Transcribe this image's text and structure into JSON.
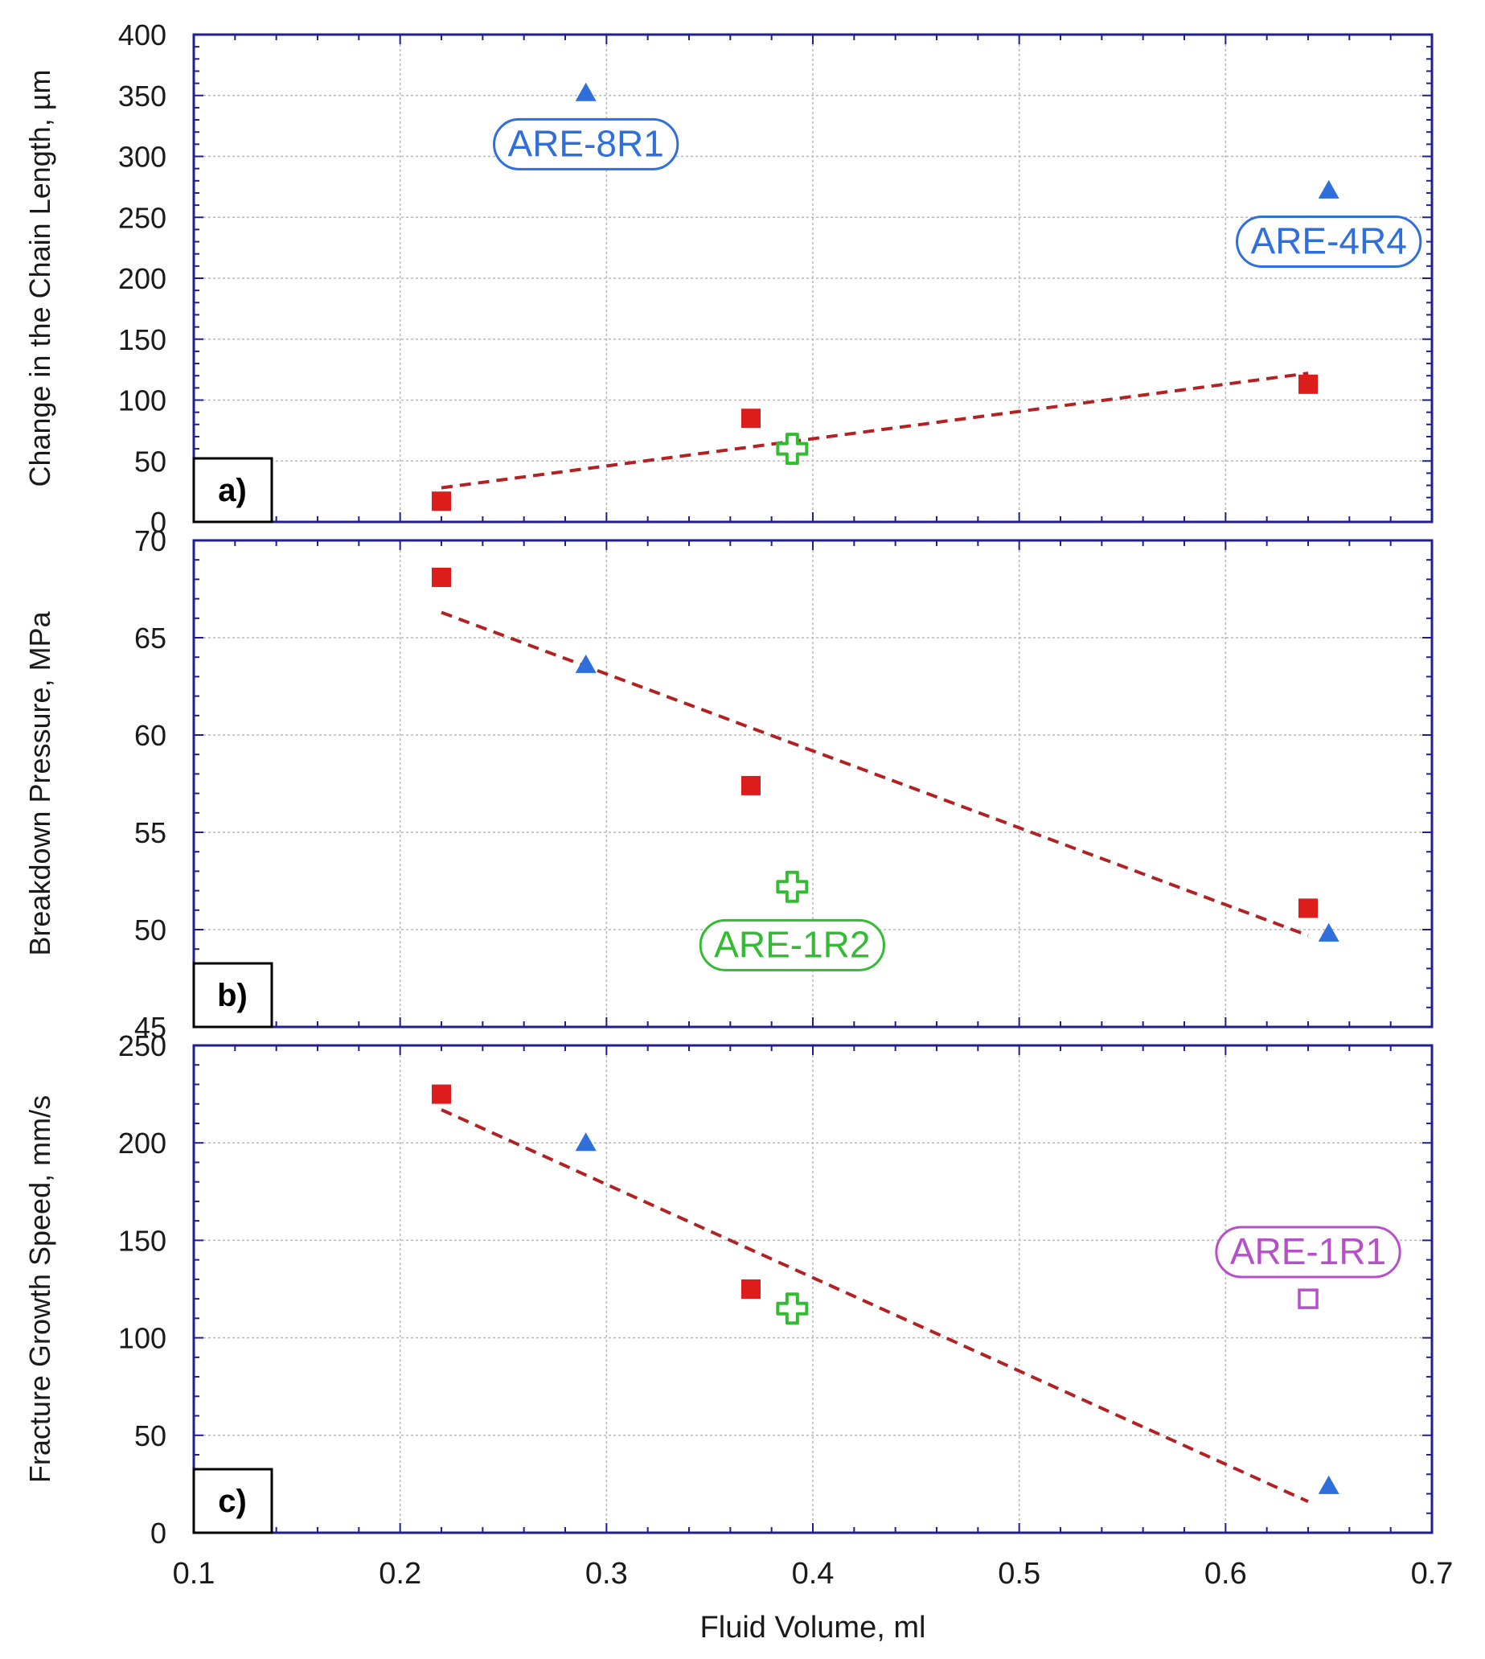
{
  "chart_data": {
    "type": "scatter",
    "xlabel": "Fluid Volume, ml",
    "xlim": [
      0.1,
      0.7
    ],
    "xticks": [
      "0.1",
      "0.2",
      "0.3",
      "0.4",
      "0.5",
      "0.6",
      "0.7"
    ],
    "xtick_values": [
      0.1,
      0.2,
      0.3,
      0.4,
      0.5,
      0.6,
      0.7
    ],
    "grid": true,
    "legend": "none",
    "colors": {
      "frame": "#1f1f8f",
      "grid": "#b8b8b8",
      "trend": "#b22222",
      "square": "#dd1c1c",
      "triangle": "#2f6fdc",
      "cross": "#33bb33",
      "open_square": "#b64fc8",
      "label_blue": "#2f6fdc",
      "label_green": "#33bb33",
      "label_purple": "#b64fc8"
    },
    "panels": [
      {
        "id": "a",
        "panel_label": "a)",
        "ylabel": "Change in the Chain Length, µm",
        "ylim": [
          0,
          400
        ],
        "yticks": [
          "0",
          "50",
          "100",
          "150",
          "200",
          "250",
          "300",
          "350",
          "400"
        ],
        "ytick_values": [
          0,
          50,
          100,
          150,
          200,
          250,
          300,
          350,
          400
        ],
        "series": [
          {
            "name": "red squares",
            "marker": "square-filled",
            "color": "#dd1c1c",
            "points": [
              [
                0.22,
                17
              ],
              [
                0.37,
                85
              ],
              [
                0.64,
                113
              ]
            ]
          },
          {
            "name": "blue triangles",
            "marker": "triangle",
            "color": "#2f6fdc",
            "points": [
              [
                0.29,
                352
              ],
              [
                0.65,
                272
              ]
            ]
          },
          {
            "name": "green cross",
            "marker": "cross-open",
            "color": "#33bb33",
            "points": [
              [
                0.39,
                60
              ]
            ]
          }
        ],
        "trendline": {
          "x": [
            0.22,
            0.64
          ],
          "y": [
            28,
            122
          ]
        },
        "annotations": [
          {
            "text": "ARE-8R1",
            "x": 0.29,
            "y": 310,
            "color": "#2f6fdc"
          },
          {
            "text": "ARE-4R4",
            "x": 0.65,
            "y": 230,
            "color": "#2f6fdc"
          }
        ]
      },
      {
        "id": "b",
        "panel_label": "b)",
        "ylabel": "Breakdown Pressure, MPa",
        "ylim": [
          45,
          70
        ],
        "yticks": [
          "45",
          "50",
          "55",
          "60",
          "65",
          "70"
        ],
        "ytick_values": [
          45,
          50,
          55,
          60,
          65,
          70
        ],
        "series": [
          {
            "name": "red squares",
            "marker": "square-filled",
            "color": "#dd1c1c",
            "points": [
              [
                0.22,
                68.1
              ],
              [
                0.37,
                57.4
              ],
              [
                0.64,
                51.1
              ]
            ]
          },
          {
            "name": "blue triangles",
            "marker": "triangle",
            "color": "#2f6fdc",
            "points": [
              [
                0.29,
                63.6
              ],
              [
                0.65,
                49.8
              ]
            ]
          },
          {
            "name": "green cross",
            "marker": "cross-open",
            "color": "#33bb33",
            "points": [
              [
                0.39,
                52.2
              ]
            ]
          }
        ],
        "trendline": {
          "x": [
            0.22,
            0.64
          ],
          "y": [
            66.3,
            49.7
          ]
        },
        "annotations": [
          {
            "text": "ARE-1R2",
            "x": 0.39,
            "y": 49.2,
            "color": "#33bb33"
          }
        ]
      },
      {
        "id": "c",
        "panel_label": "c)",
        "ylabel": "Fracture Growth Speed, mm/s",
        "ylim": [
          0,
          250
        ],
        "yticks": [
          "0",
          "50",
          "100",
          "150",
          "200",
          "250"
        ],
        "ytick_values": [
          0,
          50,
          100,
          150,
          200,
          250
        ],
        "series": [
          {
            "name": "red squares",
            "marker": "square-filled",
            "color": "#dd1c1c",
            "points": [
              [
                0.22,
                225
              ],
              [
                0.37,
                125
              ]
            ]
          },
          {
            "name": "blue triangles",
            "marker": "triangle",
            "color": "#2f6fdc",
            "points": [
              [
                0.29,
                200
              ],
              [
                0.65,
                24
              ]
            ]
          },
          {
            "name": "green cross",
            "marker": "cross-open",
            "color": "#33bb33",
            "points": [
              [
                0.39,
                115
              ]
            ]
          },
          {
            "name": "purple open square",
            "marker": "square-open",
            "color": "#b64fc8",
            "points": [
              [
                0.64,
                120
              ]
            ]
          }
        ],
        "trendline": {
          "x": [
            0.22,
            0.64
          ],
          "y": [
            217,
            16
          ]
        },
        "annotations": [
          {
            "text": "ARE-1R1",
            "x": 0.64,
            "y": 144,
            "color": "#b64fc8"
          }
        ]
      }
    ]
  }
}
